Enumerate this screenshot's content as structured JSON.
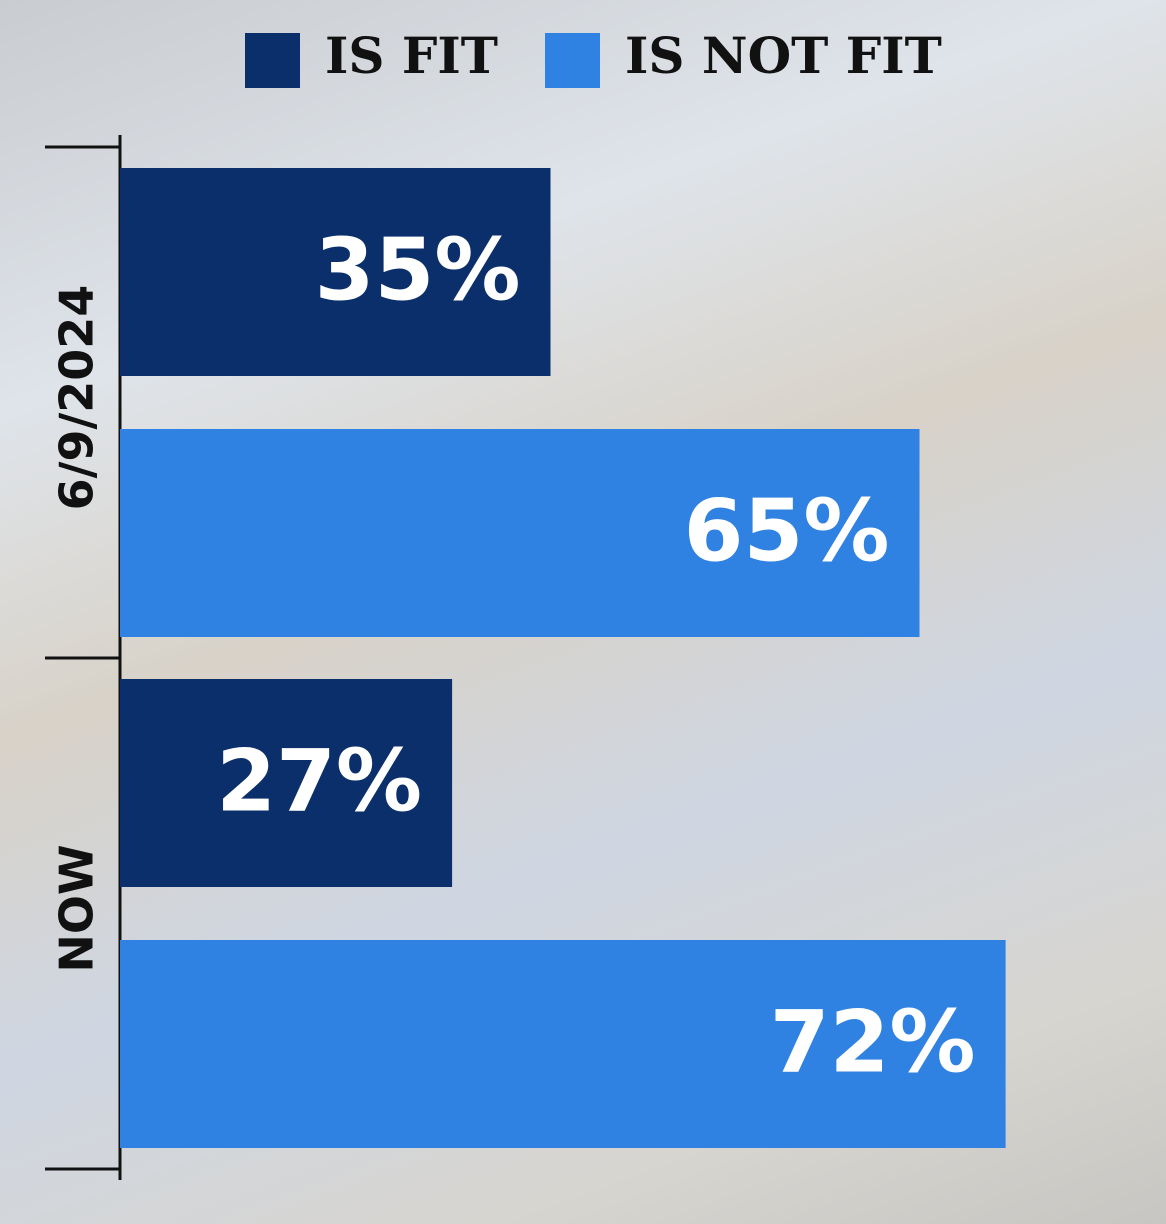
{
  "chart_data": {
    "type": "bar",
    "orientation": "horizontal",
    "categories": [
      "6/9/2024",
      "NOW"
    ],
    "series": [
      {
        "name": "IS FIT",
        "color": "#0b2f6b",
        "values": [
          35,
          27
        ],
        "value_labels": [
          "35%",
          "27%"
        ]
      },
      {
        "name": "IS NOT FIT",
        "color": "#2f81e2",
        "values": [
          65,
          72
        ],
        "value_labels": [
          "65%",
          "72%"
        ]
      }
    ]
  }
}
